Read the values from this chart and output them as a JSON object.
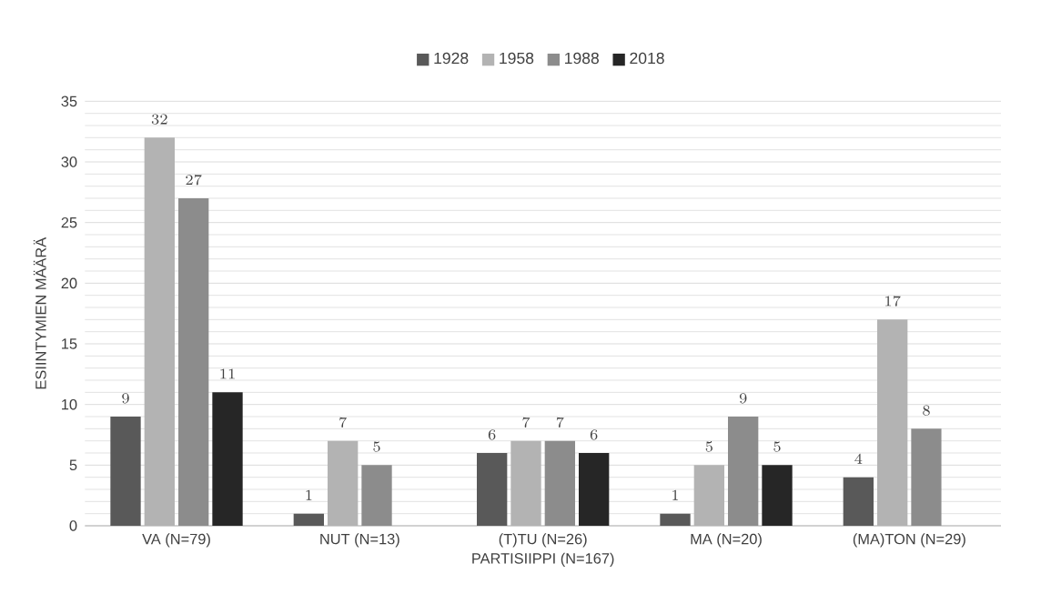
{
  "chart_data": {
    "type": "bar",
    "xlabel": "PARTISIIPPI (N=167)",
    "ylabel": "ESIINTYMIEN MÄÄRÄ",
    "categories": [
      "VA (N=79)",
      "NUT (N=13)",
      "(T)TU (N=26)",
      "MA (N=20)",
      "(MA)TON (N=29)"
    ],
    "series": [
      {
        "name": "1928",
        "color": "#595959",
        "values": [
          9,
          1,
          6,
          1,
          4
        ]
      },
      {
        "name": "1958",
        "color": "#b3b3b3",
        "values": [
          32,
          7,
          7,
          5,
          17
        ]
      },
      {
        "name": "1988",
        "color": "#8c8c8c",
        "values": [
          27,
          5,
          7,
          9,
          8
        ]
      },
      {
        "name": "2018",
        "color": "#262626",
        "values": [
          11,
          null,
          6,
          5,
          null
        ]
      }
    ],
    "ylim": [
      0,
      35
    ],
    "yticks": [
      0,
      5,
      10,
      15,
      20,
      25,
      30,
      35
    ],
    "grid": "y",
    "legend": "top",
    "data_labels": true
  }
}
